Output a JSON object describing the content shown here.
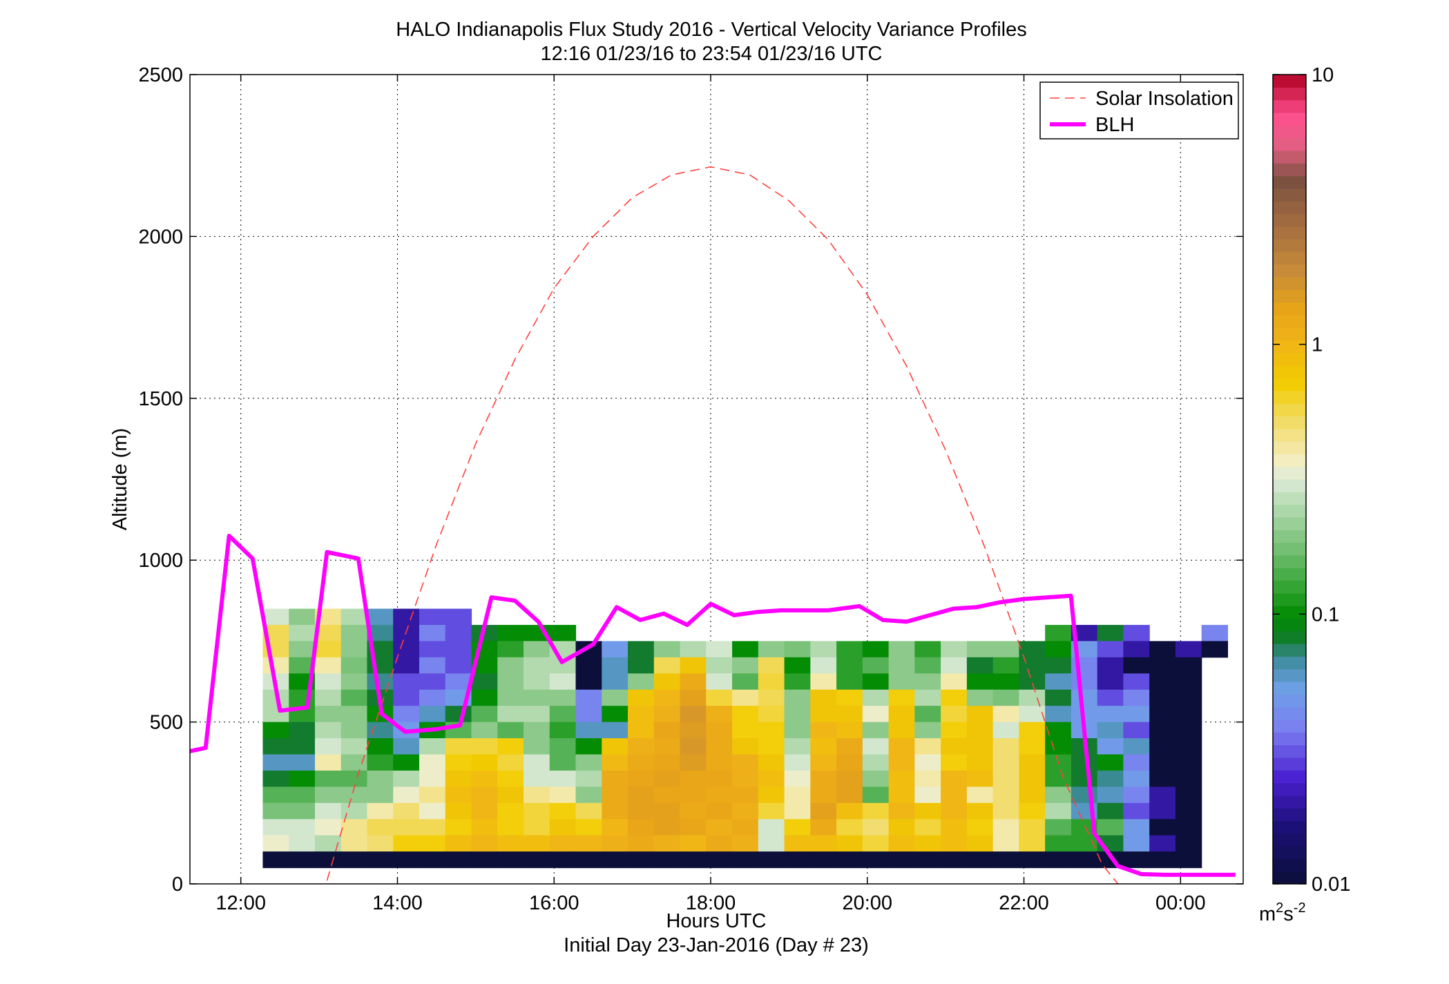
{
  "chart_data": {
    "type": "heatmap",
    "title": "HALO Indianapolis Flux Study 2016 - Vertical Velocity Variance Profiles",
    "subtitle": "12:16 01/23/16 to 23:54 01/23/16  UTC",
    "xlabel": "Hours UTC",
    "xlabel2": "Initial Day 23-Jan-2016 (Day # 23)",
    "ylabel": "Altitude (m)",
    "xlim": [
      11.35,
      24.8
    ],
    "ylim": [
      0,
      2500
    ],
    "x_ticks": [
      12,
      14,
      16,
      18,
      20,
      22,
      24
    ],
    "x_tick_labels": [
      "12:00",
      "14:00",
      "16:00",
      "18:00",
      "20:00",
      "22:00",
      "00:00"
    ],
    "y_ticks": [
      0,
      500,
      1000,
      1500,
      2000,
      2500
    ],
    "y_tick_labels": [
      "0",
      "500",
      "1000",
      "1500",
      "2000",
      "2500"
    ],
    "grid": true,
    "legend_placement": "top-right",
    "colorbar": {
      "scale": "log",
      "range": [
        0.01,
        10
      ],
      "tick_values": [
        0.01,
        0.1,
        1,
        10
      ],
      "tick_labels": [
        "0.01",
        "0.1",
        "1",
        "10"
      ],
      "unit_base": "m",
      "unit_exp1": "2",
      "unit_mid": "s",
      "unit_exp2": "-2"
    },
    "heatmap": {
      "x_start": 12.28,
      "dx": 0.333,
      "y_bottom": 50,
      "dy": 50,
      "rows_top_to_bottom": [
        "........................................",
        "........................................",
        "..aa............................ZZ......",
        "..aaa........................ZZZZ.......",
        "..aaaa..........PP.............ZZZZ....Z",
        "..aaaaa.....ZZZ.PPPP...........ZZZZZ.ZZZ",
        ".aaaaaa.....ZZZ.PPPPPPPPPPPPPPPPPZZZZZZZZ",
        ".aaaaaa.....ZZZ.PPPPPPPPPPPPPPPPPZZZZZZZZ"
      ],
      "cells": [
        [
          "0.30",
          "0.20",
          "0.45",
          "0.25",
          "0.06",
          "0.02",
          "0.03",
          "0.03",
          null,
          null,
          null,
          null,
          null,
          null,
          null,
          null,
          null,
          null,
          null,
          null,
          null,
          null,
          null,
          null,
          null,
          null,
          null,
          null,
          null,
          null,
          null,
          null,
          null,
          null,
          null,
          null,
          null,
          null,
          null,
          null
        ],
        [
          "0.55",
          "0.25",
          "0.55",
          "0.20",
          "0.07",
          "0.02",
          "0.04",
          "0.03",
          "0.08",
          "0.10",
          "0.10",
          "0.10",
          null,
          null,
          null,
          null,
          null,
          null,
          null,
          null,
          null,
          null,
          null,
          null,
          null,
          null,
          null,
          null,
          null,
          null,
          "0.12",
          "0.02",
          "0.08",
          "0.03",
          null,
          null,
          "0.04",
          null,
          null,
          null
        ],
        [
          "0.55",
          "0.20",
          "0.60",
          "0.20",
          "0.08",
          "0.02",
          "0.03",
          "0.03",
          "0.10",
          "0.12",
          "0.20",
          "0.25",
          "0.01",
          "0.05",
          "0.08",
          "0.20",
          "0.25",
          "0.30",
          "0.10",
          "0.20",
          "0.18",
          "0.25",
          "0.12",
          "0.10",
          "0.20",
          "0.12",
          "0.25",
          "0.20",
          "0.20",
          "0.08",
          "0.10",
          "0.05",
          "0.03",
          "0.02",
          "0.01",
          "0.02",
          "0.01",
          null,
          null,
          null
        ],
        [
          "0.40",
          "0.15",
          "0.40",
          "0.18",
          "0.08",
          "0.02",
          "0.04",
          "0.03",
          "0.10",
          "0.20",
          "0.25",
          "0.25",
          "0.01",
          "0.06",
          "0.08",
          "0.55",
          "0.80",
          "0.25",
          "0.20",
          "0.55",
          "0.10",
          "0.30",
          "0.12",
          "0.15",
          "0.20",
          "0.15",
          "0.30",
          "0.08",
          "0.12",
          "0.08",
          "0.08",
          "0.04",
          "0.02",
          "0.01",
          "0.01",
          "0.01",
          null,
          null,
          null,
          null
        ],
        [
          "0.30",
          "0.10",
          "0.30",
          "0.20",
          "0.07",
          "0.03",
          "0.03",
          "0.04",
          "0.08",
          "0.20",
          "0.25",
          "0.30",
          "0.01",
          "0.06",
          "0.20",
          "0.80",
          "1.20",
          "0.30",
          "0.15",
          "0.60",
          "0.12",
          "0.40",
          "0.12",
          "0.10",
          "0.20",
          "0.20",
          "0.40",
          "0.10",
          "0.10",
          "0.08",
          "0.06",
          "0.04",
          "0.02",
          "0.03",
          "0.01",
          "0.01",
          null,
          null,
          null,
          null
        ],
        [
          "0.25",
          "0.12",
          "0.25",
          "0.15",
          "0.08",
          "0.03",
          "0.04",
          "0.05",
          "0.10",
          "0.20",
          "0.20",
          "0.20",
          "0.04",
          "0.20",
          "0.80",
          "1.00",
          "1.40",
          "0.60",
          "0.45",
          "0.55",
          "0.20",
          "0.80",
          "0.70",
          "0.25",
          "0.70",
          "0.25",
          "0.70",
          "0.20",
          "0.18",
          "0.25",
          "0.08",
          "0.05",
          "0.03",
          "0.04",
          "0.01",
          "0.01",
          null,
          null,
          null,
          null
        ],
        [
          "0.25",
          "0.12",
          "0.20",
          "0.20",
          "0.10",
          "0.04",
          "0.06",
          "0.08",
          "0.15",
          "0.25",
          "0.25",
          "0.15",
          "0.04",
          "0.10",
          "0.90",
          "1.10",
          "1.60",
          "1.10",
          "0.70",
          "0.60",
          "0.20",
          "0.80",
          "0.80",
          "0.35",
          "0.80",
          "0.15",
          "0.60",
          "0.80",
          "0.40",
          "0.30",
          "0.06",
          "0.05",
          "0.05",
          "0.05",
          "0.01",
          "0.01",
          null,
          null,
          null,
          null
        ],
        [
          "0.10",
          "0.08",
          "0.25",
          "0.20",
          "0.07",
          "0.05",
          "0.10",
          "0.15",
          "0.20",
          "0.15",
          "0.20",
          "0.12",
          "0.06",
          "0.06",
          "0.90",
          "1.30",
          "1.50",
          "1.20",
          "0.70",
          "0.70",
          "0.20",
          "1.00",
          "0.90",
          "0.20",
          "0.80",
          "0.20",
          "0.70",
          "0.80",
          "0.30",
          "0.70",
          "0.10",
          "0.05",
          "0.06",
          "0.03",
          "0.01",
          "0.01",
          null,
          null,
          null,
          null
        ],
        [
          "0.08",
          "0.08",
          "0.30",
          "0.25",
          "0.10",
          "0.06",
          "0.25",
          "0.60",
          "0.60",
          "0.70",
          "0.20",
          "0.15",
          "0.10",
          "0.80",
          "1.10",
          "1.20",
          "1.60",
          "1.20",
          "0.80",
          "0.70",
          "0.25",
          "0.90",
          "1.20",
          "0.30",
          "1.00",
          "0.45",
          "0.80",
          "0.80",
          "0.50",
          "0.70",
          "0.10",
          "0.08",
          "0.05",
          "0.06",
          "0.01",
          "0.01",
          null,
          null,
          null,
          null
        ],
        [
          "0.06",
          "0.06",
          "0.40",
          "0.20",
          "0.12",
          "0.10",
          "0.35",
          "0.70",
          "0.75",
          "0.60",
          "0.30",
          "0.15",
          "0.20",
          "0.95",
          "1.20",
          "1.30",
          "1.50",
          "1.20",
          "1.10",
          "0.80",
          "0.30",
          "1.00",
          "1.30",
          "0.25",
          "1.00",
          "0.35",
          "0.70",
          "0.80",
          "0.50",
          "0.80",
          "0.12",
          "0.08",
          "0.10",
          "0.04",
          "0.01",
          "0.01",
          null,
          null,
          null,
          null
        ],
        [
          "0.08",
          "0.10",
          "0.15",
          "0.15",
          "0.20",
          "0.25",
          "0.35",
          "0.80",
          "0.90",
          "0.70",
          "0.30",
          "0.30",
          "0.25",
          "1.20",
          "1.30",
          "1.40",
          "1.30",
          "1.30",
          "1.10",
          "0.90",
          "0.35",
          "1.20",
          "1.40",
          "0.20",
          "0.90",
          "0.40",
          "1.00",
          "0.90",
          "0.50",
          "0.80",
          "0.12",
          "0.08",
          "0.07",
          "0.05",
          "0.01",
          "0.01",
          null,
          null,
          null,
          null
        ],
        [
          "0.15",
          "0.15",
          "0.20",
          "0.20",
          "0.20",
          "0.35",
          "0.45",
          "0.90",
          "1.00",
          "0.80",
          "0.45",
          "0.40",
          "0.20",
          "1.20",
          "1.40",
          "1.30",
          "1.30",
          "1.20",
          "1.20",
          "0.80",
          "0.40",
          "1.20",
          "1.40",
          "0.15",
          "0.90",
          "0.35",
          "1.00",
          "0.40",
          "0.50",
          "0.80",
          "0.20",
          "0.07",
          "0.06",
          "0.04",
          "0.02",
          "0.01",
          null,
          null,
          null,
          null
        ],
        [
          "0.18",
          "0.18",
          "0.30",
          "0.25",
          "0.40",
          "0.50",
          "0.35",
          "0.80",
          "1.00",
          "0.70",
          "0.60",
          "0.70",
          "0.55",
          "1.20",
          "1.40",
          "1.40",
          "1.20",
          "1.30",
          "1.10",
          "0.60",
          "0.40",
          "1.40",
          "0.90",
          "0.60",
          "1.00",
          "0.80",
          "1.00",
          "0.80",
          "0.50",
          "0.70",
          "0.25",
          "0.06",
          "0.08",
          "0.03",
          "0.02",
          "0.01",
          null,
          null,
          null,
          null
        ],
        [
          "0.30",
          "0.30",
          "0.35",
          "0.45",
          "0.55",
          "0.55",
          "0.55",
          "0.70",
          "0.90",
          "0.70",
          "0.60",
          "0.80",
          "0.70",
          "1.00",
          "1.30",
          "1.40",
          "1.30",
          "1.10",
          "1.20",
          "0.30",
          "0.70",
          "1.20",
          "0.60",
          "0.50",
          "0.80",
          "0.60",
          "0.90",
          "0.70",
          "0.40",
          "0.60",
          "0.15",
          "0.12",
          "0.15",
          "0.05",
          "0.01",
          "0.01",
          null,
          null,
          null,
          null
        ],
        [
          "0.35",
          "0.30",
          "0.25",
          "0.45",
          "0.50",
          "0.70",
          "0.70",
          "0.90",
          "1.00",
          "0.90",
          "0.90",
          "1.00",
          "1.00",
          "1.10",
          "1.20",
          "1.10",
          "1.00",
          "1.20",
          "1.10",
          "0.30",
          "0.90",
          "0.90",
          "0.80",
          "0.60",
          "0.90",
          "0.80",
          "0.90",
          "0.80",
          "0.40",
          "0.60",
          "0.12",
          "0.12",
          "0.08",
          "0.05",
          "0.02",
          "0.01",
          null,
          null,
          null,
          null
        ],
        [
          "0.01",
          "0.01",
          "0.01",
          "0.01",
          "0.01",
          "0.01",
          "0.01",
          "0.01",
          "0.01",
          "0.01",
          "0.01",
          "0.01",
          "0.01",
          "0.01",
          "0.01",
          "0.01",
          "0.01",
          "0.01",
          "0.01",
          "0.01",
          "0.01",
          "0.01",
          "0.01",
          "0.01",
          "0.01",
          "0.01",
          "0.01",
          "0.01",
          "0.01",
          "0.01",
          "0.01",
          "0.01",
          "0.01",
          "0.01",
          "0.01",
          "0.01",
          null,
          null,
          null,
          null
        ]
      ]
    },
    "series": [
      {
        "name": "Solar Insolation",
        "color": "#ff4040",
        "style": "dashed",
        "x": [
          13.1,
          13.5,
          14.0,
          14.5,
          15.0,
          15.5,
          16.0,
          16.5,
          17.0,
          17.5,
          18.0,
          18.5,
          19.0,
          19.5,
          20.0,
          20.5,
          21.0,
          21.5,
          22.0,
          22.5,
          23.0,
          23.2
        ],
        "y": [
          10,
          340,
          700,
          1050,
          1360,
          1620,
          1840,
          2000,
          2120,
          2190,
          2215,
          2190,
          2110,
          1990,
          1820,
          1600,
          1340,
          1040,
          700,
          330,
          60,
          0
        ]
      },
      {
        "name": "BLH",
        "color": "#ff00ff",
        "style": "solid",
        "x": [
          11.35,
          11.55,
          11.85,
          12.15,
          12.5,
          12.85,
          13.1,
          13.5,
          13.8,
          14.1,
          14.5,
          14.8,
          15.2,
          15.5,
          15.8,
          16.1,
          16.5,
          16.8,
          17.1,
          17.4,
          17.7,
          18.0,
          18.3,
          18.6,
          18.9,
          19.2,
          19.5,
          19.9,
          20.2,
          20.5,
          20.8,
          21.1,
          21.4,
          21.7,
          22.0,
          22.3,
          22.6,
          22.9,
          23.2,
          23.5,
          23.8,
          24.1,
          24.4,
          24.7
        ],
        "y": [
          410,
          420,
          1075,
          1005,
          535,
          545,
          1025,
          1005,
          525,
          470,
          478,
          490,
          885,
          875,
          810,
          685,
          740,
          855,
          815,
          835,
          800,
          865,
          830,
          840,
          845,
          845,
          845,
          858,
          815,
          810,
          830,
          850,
          855,
          870,
          880,
          885,
          890,
          155,
          55,
          30,
          28,
          28,
          28,
          28
        ]
      }
    ]
  }
}
